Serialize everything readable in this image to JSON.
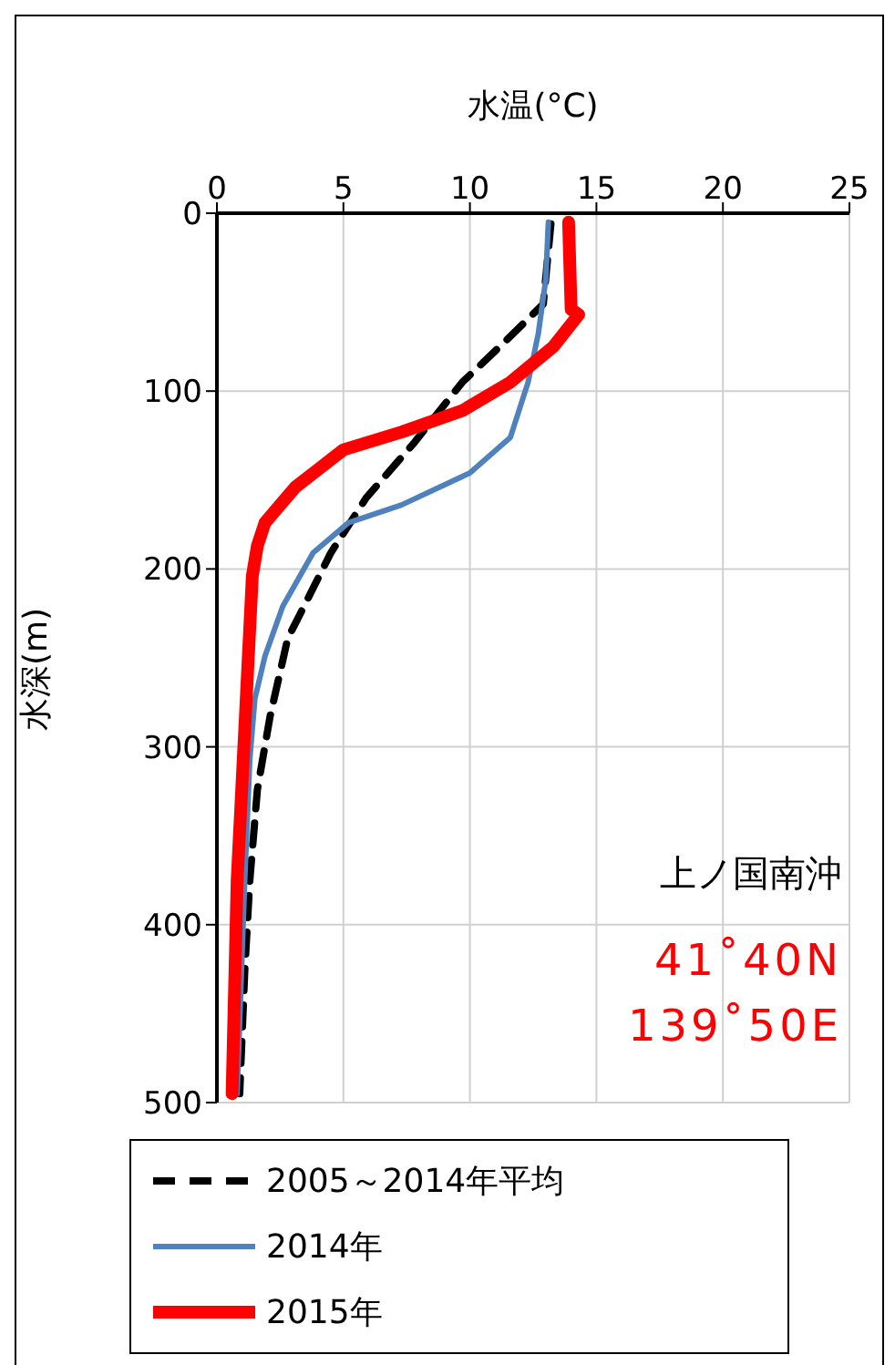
{
  "chart_data": {
    "type": "line",
    "xlabel": "水温(°C)",
    "ylabel": "水深(m)",
    "xlim": [
      0,
      25
    ],
    "xticks": [
      0,
      5,
      10,
      15,
      20,
      25
    ],
    "ylim": [
      500,
      0
    ],
    "yticks": [
      0,
      100,
      200,
      300,
      400,
      500
    ],
    "grid": true,
    "legend": "bottom",
    "marker": "none",
    "annotations": [
      "上ノ国南沖",
      "41˚40N",
      "139˚50E"
    ],
    "series": [
      {
        "name": "2005～2014年平均",
        "color": "#000000",
        "line_style": "dashed",
        "x": [
          13.2,
          12.9,
          11.4,
          9.7,
          7.8,
          5.9,
          4.5,
          3.3,
          2.8,
          2.1,
          1.6,
          1.3,
          1.1,
          0.9
        ],
        "values": [
          6,
          51,
          72,
          95,
          129,
          160,
          191,
          225,
          239,
          283,
          324,
          375,
          426,
          495
        ]
      },
      {
        "name": "2014年",
        "color": "#4f81bd",
        "line_style": "solid",
        "x": [
          13.1,
          13.0,
          12.7,
          12.3,
          11.6,
          10.0,
          7.3,
          5.2,
          3.8,
          2.6,
          1.9,
          1.5,
          1.3,
          1.1,
          0.8
        ],
        "values": [
          5,
          37,
          68,
          95,
          126,
          146,
          164,
          174,
          191,
          221,
          249,
          273,
          307,
          375,
          495
        ]
      },
      {
        "name": "2015年",
        "color": "#ff0000",
        "line_style": "solid",
        "x": [
          13.9,
          14.0,
          14.3,
          13.3,
          11.6,
          9.7,
          7.3,
          5.0,
          3.1,
          1.9,
          1.6,
          1.4,
          1.1,
          0.8,
          0.6
        ],
        "values": [
          5,
          54,
          57,
          75,
          95,
          111,
          123,
          133,
          154,
          174,
          187,
          204,
          290,
          375,
          495
        ]
      }
    ]
  }
}
